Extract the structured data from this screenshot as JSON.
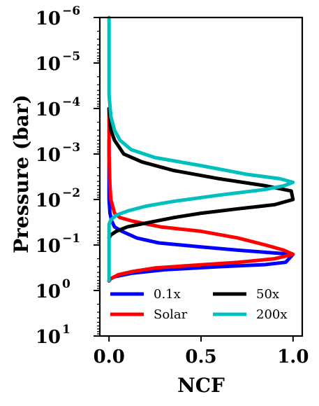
{
  "chart_data": {
    "type": "line",
    "xlabel": "NCF",
    "ylabel": "Pressure (bar)",
    "xlim": [
      -0.05,
      1.05
    ],
    "ylim_log10": [
      -6,
      1
    ],
    "yscale": "log",
    "y_inverted": true,
    "grid": false,
    "legend_placement": "lower-right",
    "legend_columns": 2,
    "x_ticks": [
      {
        "value": 0.0,
        "label": "0.0"
      },
      {
        "value": 0.5,
        "label": "0.5"
      },
      {
        "value": 1.0,
        "label": "1.0"
      }
    ],
    "y_ticks": [
      {
        "value": 1e-06,
        "base": "10",
        "exp": "−6"
      },
      {
        "value": 1e-05,
        "base": "10",
        "exp": "−5"
      },
      {
        "value": 0.0001,
        "base": "10",
        "exp": "−4"
      },
      {
        "value": 0.001,
        "base": "10",
        "exp": "−3"
      },
      {
        "value": 0.01,
        "base": "10",
        "exp": "−2"
      },
      {
        "value": 0.1,
        "base": "10",
        "exp": "−1"
      },
      {
        "value": 1.0,
        "base": "10",
        "exp": "0"
      },
      {
        "value": 10.0,
        "base": "10",
        "exp": "1"
      }
    ],
    "series": [
      {
        "name": "0.1x",
        "color": "#0000ff",
        "points": [
          [
            0.0,
            0.0005
          ],
          [
            0.0,
            0.01
          ],
          [
            0.005,
            0.02
          ],
          [
            0.015,
            0.03
          ],
          [
            0.03,
            0.04
          ],
          [
            0.07,
            0.05
          ],
          [
            0.15,
            0.07
          ],
          [
            0.27,
            0.09
          ],
          [
            0.5,
            0.11
          ],
          [
            0.7,
            0.13
          ],
          [
            0.9,
            0.15
          ],
          [
            1.0,
            0.16
          ],
          [
            0.96,
            0.24
          ],
          [
            0.85,
            0.27
          ],
          [
            0.6,
            0.3
          ],
          [
            0.3,
            0.35
          ],
          [
            0.12,
            0.42
          ],
          [
            0.03,
            0.5
          ],
          [
            0.01,
            0.55
          ],
          [
            0.0,
            0.6
          ]
        ]
      },
      {
        "name": "Solar",
        "color": "#ff0000",
        "points": [
          [
            0.0,
            0.0001
          ],
          [
            0.0,
            0.001
          ],
          [
            0.005,
            0.005
          ],
          [
            0.01,
            0.01
          ],
          [
            0.03,
            0.02
          ],
          [
            0.06,
            0.025
          ],
          [
            0.13,
            0.03
          ],
          [
            0.28,
            0.04
          ],
          [
            0.5,
            0.05
          ],
          [
            0.7,
            0.07
          ],
          [
            0.85,
            0.1
          ],
          [
            0.95,
            0.13
          ],
          [
            1.0,
            0.16
          ],
          [
            0.9,
            0.2
          ],
          [
            0.7,
            0.24
          ],
          [
            0.45,
            0.28
          ],
          [
            0.25,
            0.32
          ],
          [
            0.13,
            0.38
          ],
          [
            0.05,
            0.45
          ],
          [
            0.01,
            0.55
          ],
          [
            0.0,
            0.62
          ]
        ]
      },
      {
        "name": "50x",
        "color": "#000000",
        "points": [
          [
            0.0,
            0.0001
          ],
          [
            0.01,
            0.0003
          ],
          [
            0.03,
            0.0005
          ],
          [
            0.08,
            0.001
          ],
          [
            0.18,
            0.0015
          ],
          [
            0.35,
            0.0023
          ],
          [
            0.6,
            0.0035
          ],
          [
            0.85,
            0.005
          ],
          [
            0.99,
            0.0065
          ],
          [
            1.0,
            0.01
          ],
          [
            0.9,
            0.013
          ],
          [
            0.7,
            0.016
          ],
          [
            0.5,
            0.02
          ],
          [
            0.35,
            0.025
          ],
          [
            0.2,
            0.033
          ],
          [
            0.1,
            0.04
          ],
          [
            0.04,
            0.05
          ],
          [
            0.01,
            0.06
          ],
          [
            0.0,
            0.07
          ]
        ]
      },
      {
        "name": "200x",
        "color": "#00bfbf",
        "points": [
          [
            0.0,
            1e-06
          ],
          [
            0.0,
            5e-05
          ],
          [
            0.01,
            0.00015
          ],
          [
            0.03,
            0.0003
          ],
          [
            0.06,
            0.0005
          ],
          [
            0.12,
            0.0008
          ],
          [
            0.25,
            0.0012
          ],
          [
            0.5,
            0.0018
          ],
          [
            0.75,
            0.0028
          ],
          [
            0.93,
            0.0035
          ],
          [
            1.0,
            0.0042
          ],
          [
            0.95,
            0.005
          ],
          [
            0.85,
            0.006
          ],
          [
            0.6,
            0.008
          ],
          [
            0.35,
            0.011
          ],
          [
            0.2,
            0.014
          ],
          [
            0.1,
            0.018
          ],
          [
            0.04,
            0.022
          ],
          [
            0.01,
            0.028
          ],
          [
            0.0,
            0.035
          ],
          [
            0.0,
            0.6
          ]
        ]
      }
    ]
  }
}
